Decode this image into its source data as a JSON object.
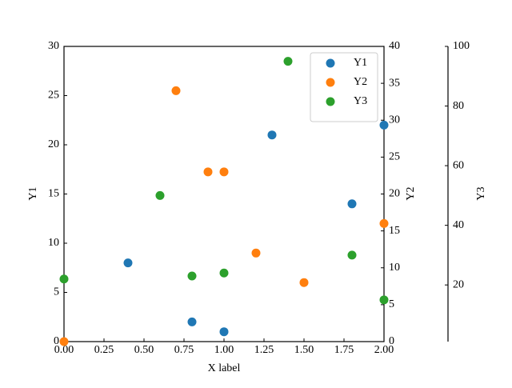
{
  "chart_data": {
    "type": "scatter",
    "xlabel": "X label",
    "ylabel": "Y1",
    "y2label": "Y2",
    "y3label": "Y3",
    "xlim": [
      0,
      2
    ],
    "xticks": [
      {
        "value": 0,
        "label": "0.00"
      },
      {
        "value": 0.25,
        "label": "0.25"
      },
      {
        "value": 0.5,
        "label": "0.50"
      },
      {
        "value": 0.75,
        "label": "0.75"
      },
      {
        "value": 1,
        "label": "1.00"
      },
      {
        "value": 1.25,
        "label": "1.25"
      },
      {
        "value": 1.5,
        "label": "1.50"
      },
      {
        "value": 1.75,
        "label": "1.75"
      },
      {
        "value": 2,
        "label": "2.00"
      }
    ],
    "ylim": [
      0,
      30
    ],
    "yticks": [
      0,
      5,
      10,
      15,
      20,
      25,
      30
    ],
    "y2lim": [
      0,
      40
    ],
    "y2ticks": [
      0,
      5,
      10,
      15,
      20,
      25,
      30,
      35,
      40
    ],
    "y3lim": [
      1,
      100
    ],
    "y3ticks": [
      20,
      40,
      60,
      80,
      100
    ],
    "legend": "upper right",
    "series": [
      {
        "name": "Y1",
        "color": "#1f77b4",
        "axis": "y",
        "x": [
          0.4,
          0.8,
          1.0,
          1.3,
          1.8,
          2.0
        ],
        "values": [
          8,
          2,
          1,
          21,
          14,
          22
        ]
      },
      {
        "name": "Y2",
        "color": "#ff7f0e",
        "axis": "y2",
        "x": [
          0,
          0.7,
          0.9,
          1.0,
          1.2,
          1.5,
          2.0
        ],
        "values": [
          0,
          34,
          23,
          23,
          12,
          8,
          16
        ]
      },
      {
        "name": "Y3",
        "color": "#2ca02c",
        "axis": "y3",
        "x": [
          0,
          0.6,
          0.8,
          1.0,
          1.4,
          1.8,
          2.0
        ],
        "values": [
          22,
          50,
          23,
          24,
          95,
          30,
          15
        ]
      }
    ]
  }
}
